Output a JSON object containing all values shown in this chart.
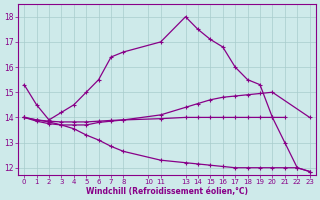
{
  "background_color": "#ceeaea",
  "line_color": "#880088",
  "grid_color": "#a8cccc",
  "xlabel": "Windchill (Refroidissement éolien,°C)",
  "xlabel_color": "#880088",
  "tick_color": "#880088",
  "xlim": [
    -0.5,
    23.5
  ],
  "ylim": [
    11.7,
    18.5
  ],
  "yticks": [
    12,
    13,
    14,
    15,
    16,
    17,
    18
  ],
  "xticks": [
    0,
    1,
    2,
    3,
    4,
    5,
    6,
    7,
    8,
    10,
    11,
    13,
    14,
    15,
    16,
    17,
    18,
    19,
    20,
    21,
    22,
    23
  ],
  "series": [
    {
      "x": [
        0,
        1,
        2,
        3,
        4,
        5,
        6,
        7,
        8,
        11,
        13,
        14,
        15,
        16,
        17,
        18,
        19,
        20,
        21,
        22,
        23
      ],
      "y": [
        15.3,
        14.5,
        13.9,
        14.2,
        14.5,
        15.0,
        15.5,
        16.4,
        16.6,
        17.0,
        18.0,
        17.5,
        17.1,
        16.8,
        16.0,
        15.5,
        15.3,
        14.0,
        13.0,
        12.0,
        11.85
      ]
    },
    {
      "x": [
        0,
        1,
        2,
        3,
        4,
        5,
        6,
        7,
        8,
        11,
        13,
        14,
        15,
        16,
        17,
        18,
        19,
        20,
        23
      ],
      "y": [
        14.0,
        13.85,
        13.75,
        13.7,
        13.7,
        13.7,
        13.8,
        13.85,
        13.9,
        14.1,
        14.4,
        14.55,
        14.7,
        14.8,
        14.85,
        14.9,
        14.95,
        15.0,
        14.0
      ]
    },
    {
      "x": [
        0,
        1,
        2,
        3,
        4,
        5,
        6,
        7,
        8,
        11,
        13,
        14,
        15,
        16,
        17,
        18,
        19,
        20,
        21
      ],
      "y": [
        14.0,
        13.9,
        13.85,
        13.82,
        13.82,
        13.82,
        13.85,
        13.88,
        13.9,
        13.95,
        14.0,
        14.0,
        14.0,
        14.0,
        14.0,
        14.0,
        14.0,
        14.0,
        14.0
      ]
    },
    {
      "x": [
        0,
        1,
        2,
        3,
        4,
        5,
        6,
        7,
        8,
        11,
        13,
        14,
        15,
        16,
        17,
        18,
        19,
        20,
        21,
        22,
        23
      ],
      "y": [
        14.0,
        13.9,
        13.82,
        13.7,
        13.55,
        13.3,
        13.1,
        12.85,
        12.65,
        12.3,
        12.2,
        12.15,
        12.1,
        12.05,
        12.0,
        12.0,
        12.0,
        12.0,
        12.0,
        12.0,
        11.85
      ]
    }
  ]
}
